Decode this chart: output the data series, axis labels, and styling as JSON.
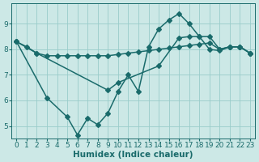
{
  "xlabel": "Humidex (Indice chaleur)",
  "ylabel": "",
  "background_color": "#cce8e6",
  "grid_color": "#99ccca",
  "line_color": "#1a6b6b",
  "ylim": [
    4.5,
    9.8
  ],
  "xlim": [
    -0.5,
    23.5
  ],
  "yticks": [
    5,
    6,
    7,
    8,
    9
  ],
  "xticks": [
    0,
    1,
    2,
    3,
    4,
    5,
    6,
    7,
    8,
    9,
    10,
    11,
    12,
    13,
    14,
    15,
    16,
    17,
    18,
    19,
    20,
    21,
    22,
    23
  ],
  "line1_x": [
    0,
    1,
    2,
    3,
    4,
    5,
    6,
    7,
    8,
    9,
    10,
    11,
    12,
    13,
    14,
    15,
    16,
    17,
    18,
    19,
    20,
    21,
    22,
    23
  ],
  "line1_y": [
    8.3,
    8.1,
    7.85,
    7.75,
    7.75,
    7.75,
    7.75,
    7.75,
    7.75,
    7.75,
    7.8,
    7.85,
    7.9,
    7.95,
    8.0,
    8.05,
    8.1,
    8.15,
    8.2,
    8.25,
    8.0,
    8.1,
    8.1,
    7.85
  ],
  "line2_x": [
    0,
    3,
    5,
    6,
    7,
    8,
    9,
    10,
    11,
    12,
    13,
    14,
    15,
    16,
    17,
    18,
    19,
    20,
    21,
    22,
    23
  ],
  "line2_y": [
    8.3,
    6.1,
    5.35,
    4.65,
    5.3,
    5.05,
    5.5,
    6.35,
    7.0,
    6.35,
    8.1,
    8.8,
    9.15,
    9.4,
    9.0,
    8.5,
    8.0,
    7.95,
    8.1,
    8.1,
    7.85
  ],
  "line3_x": [
    0,
    2,
    9,
    10,
    14,
    16,
    17,
    18,
    19,
    20,
    21,
    22,
    23
  ],
  "line3_y": [
    8.3,
    7.85,
    6.4,
    6.7,
    7.35,
    8.45,
    8.5,
    8.5,
    8.5,
    8.0,
    8.1,
    8.1,
    7.85
  ],
  "markersize": 3,
  "linewidth": 1.1,
  "label_fontsize": 7.5,
  "tick_fontsize": 6.5
}
